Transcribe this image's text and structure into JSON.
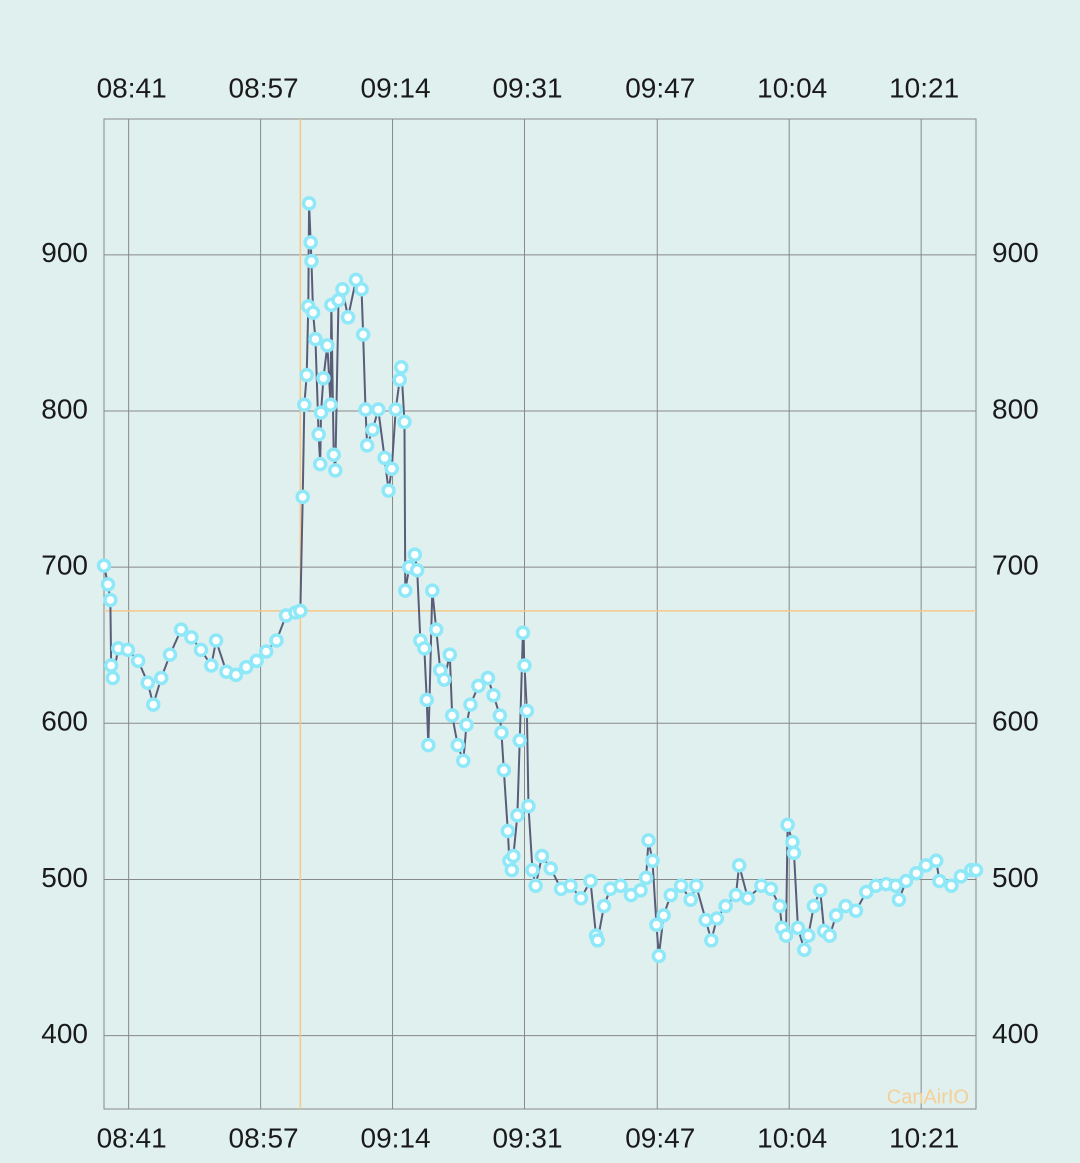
{
  "chart_data": {
    "type": "line",
    "watermark": "CanAirIO",
    "color": "#5a5d78",
    "marker_color": "#8ee8f8",
    "highlight_color": "#f5c88a",
    "grid": true,
    "highlight": {
      "x": 542.9,
      "y": 672
    },
    "xlim": [
      518.2,
      627.9
    ],
    "xticks": [
      {
        "value": 521.3,
        "label": "08:41"
      },
      {
        "value": 537.9,
        "label": "08:57"
      },
      {
        "value": 554.5,
        "label": "09:14"
      },
      {
        "value": 571.1,
        "label": "09:31"
      },
      {
        "value": 587.8,
        "label": "09:47"
      },
      {
        "value": 604.4,
        "label": "10:04"
      },
      {
        "value": 621.0,
        "label": "10:21"
      }
    ],
    "ylim": [
      353,
      987
    ],
    "yticks": [
      400,
      500,
      600,
      700,
      800,
      900
    ],
    "x": [
      518.2,
      518.7,
      519.0,
      519.1,
      519.3,
      520.0,
      521.2,
      522.5,
      523.7,
      524.4,
      525.4,
      526.5,
      527.9,
      529.2,
      530.4,
      531.7,
      532.3,
      533.6,
      534.8,
      536.1,
      537.4,
      538.6,
      539.9,
      541.1,
      542.3,
      542.9,
      543.2,
      543.4,
      543.7,
      543.9,
      544.0,
      544.2,
      544.3,
      544.5,
      544.8,
      545.2,
      545.4,
      545.5,
      545.8,
      546.3,
      546.7,
      546.8,
      547.1,
      547.3,
      547.7,
      548.2,
      548.9,
      549.9,
      550.6,
      550.8,
      551.1,
      551.3,
      552.0,
      552.7,
      553.5,
      554.0,
      554.4,
      554.9,
      555.4,
      555.6,
      556.0,
      556.1,
      556.6,
      557.3,
      557.6,
      558.0,
      558.5,
      558.8,
      559.0,
      559.5,
      560.0,
      560.5,
      561.0,
      561.7,
      562.0,
      562.7,
      563.4,
      563.8,
      564.3,
      565.3,
      566.5,
      567.2,
      568.0,
      568.2,
      568.5,
      569.0,
      569.2,
      569.5,
      569.7,
      570.2,
      570.5,
      570.9,
      571.1,
      571.4,
      571.6,
      572.1,
      572.5,
      573.3,
      574.4,
      575.7,
      576.9,
      578.2,
      579.4,
      580.1,
      580.3,
      581.1,
      581.9,
      583.2,
      584.5,
      585.7,
      586.4,
      586.7,
      587.2,
      587.7,
      588.0,
      588.6,
      589.5,
      590.8,
      592.0,
      592.7,
      593.9,
      594.6,
      595.3,
      596.4,
      597.7,
      598.1,
      599.2,
      600.9,
      602.1,
      603.2,
      603.5,
      604.0,
      604.2,
      604.8,
      605.0,
      605.5,
      606.3,
      606.8,
      607.5,
      608.3,
      608.8,
      609.5,
      610.3,
      611.5,
      612.8,
      614.1,
      615.3,
      616.6,
      617.8,
      618.2,
      619.1,
      620.4,
      621.6,
      622.9,
      623.3,
      624.8,
      626.0,
      627.3,
      627.9
    ],
    "values": [
      701,
      689,
      679,
      637,
      629,
      648,
      647,
      640,
      626,
      612,
      629,
      644,
      660,
      655,
      647,
      637,
      653,
      633,
      631,
      636,
      640,
      646,
      653,
      669,
      671,
      672,
      745,
      804,
      823,
      867,
      933,
      908,
      896,
      863,
      846,
      785,
      766,
      799,
      821,
      842,
      804,
      868,
      772,
      762,
      871,
      878,
      860,
      884,
      878,
      849,
      801,
      778,
      788,
      801,
      770,
      749,
      763,
      801,
      820,
      828,
      793,
      685,
      700,
      708,
      698,
      653,
      648,
      615,
      586,
      685,
      660,
      634,
      628,
      644,
      605,
      586,
      576,
      599,
      612,
      624,
      629,
      618,
      605,
      594,
      570,
      531,
      512,
      506,
      515,
      541,
      589,
      658,
      637,
      608,
      547,
      506,
      496,
      515,
      507,
      494,
      496,
      488,
      499,
      464,
      461,
      483,
      494,
      496,
      490,
      493,
      501,
      525,
      512,
      471,
      451,
      477,
      490,
      496,
      487,
      496,
      474,
      461,
      475,
      483,
      490,
      509,
      488,
      496,
      494,
      483,
      469,
      464,
      535,
      524,
      517,
      469,
      455,
      464,
      483,
      493,
      467,
      464,
      477,
      483,
      480,
      492,
      496,
      497,
      496,
      487,
      499,
      504,
      509,
      512,
      499,
      496,
      502,
      506,
      506
    ]
  }
}
